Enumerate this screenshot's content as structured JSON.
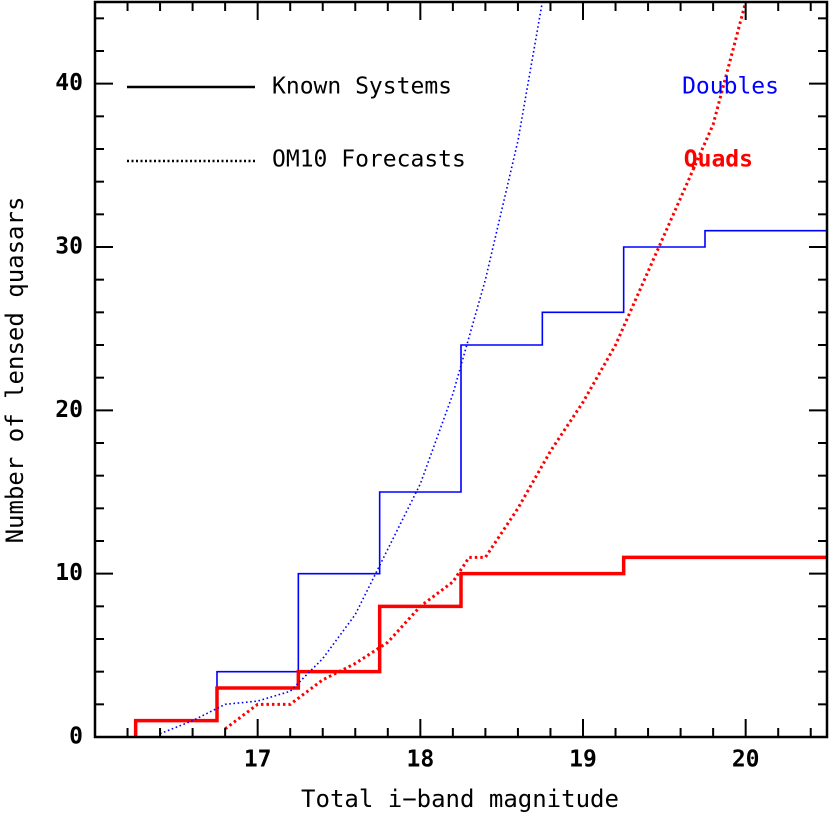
{
  "chart_data": {
    "type": "line",
    "xlabel": "Total i−band magnitude",
    "ylabel": "Number of lensed quasars",
    "xlim": [
      16.0,
      20.5
    ],
    "ylim": [
      0,
      45
    ],
    "x_ticks": [
      17,
      18,
      19,
      20
    ],
    "y_ticks": [
      0,
      10,
      20,
      30,
      40
    ],
    "x_tick_labels": [
      "17",
      "18",
      "19",
      "20"
    ],
    "y_tick_labels": [
      "0",
      "10",
      "20",
      "30",
      "40"
    ],
    "grid": false,
    "legend": {
      "placement": "top",
      "style_entries": [
        {
          "label": "Known Systems",
          "linestyle": "solid"
        },
        {
          "label": "OM10 Forecasts",
          "linestyle": "dotted"
        }
      ],
      "color_entries": [
        {
          "label": "Doubles",
          "color": "#0000ff"
        },
        {
          "label": "Quads",
          "color": "#ff0000"
        }
      ]
    },
    "series": [
      {
        "name": "Doubles",
        "kind": "Known Systems",
        "color": "#0000ff",
        "style": "step",
        "x": [
          16.25,
          16.75,
          17.25,
          17.75,
          18.25,
          18.75,
          19.25,
          19.75,
          20.5
        ],
        "y": [
          1,
          4,
          10,
          15,
          24,
          26,
          30,
          31,
          31
        ]
      },
      {
        "name": "Quads",
        "kind": "Known Systems",
        "color": "#ff0000",
        "style": "step",
        "x": [
          16.25,
          16.75,
          17.25,
          17.75,
          18.25,
          18.75,
          19.25,
          19.75,
          20.5
        ],
        "y": [
          1,
          3,
          4,
          8,
          10,
          10,
          11,
          11,
          11
        ]
      },
      {
        "name": "Doubles",
        "kind": "OM10 Forecasts",
        "color": "#0000ff",
        "style": "dotted",
        "x": [
          16.4,
          16.6,
          16.8,
          17.0,
          17.2,
          17.4,
          17.6,
          17.8,
          18.0,
          18.2,
          18.4,
          18.6,
          18.75
        ],
        "y": [
          0.2,
          1.0,
          2.0,
          2.2,
          2.8,
          4.8,
          7.5,
          11.5,
          15.5,
          21.0,
          28.0,
          36.5,
          45.0
        ]
      },
      {
        "name": "Quads",
        "kind": "OM10 Forecasts",
        "color": "#ff0000",
        "style": "dotted",
        "x": [
          16.8,
          17.0,
          17.2,
          17.4,
          17.6,
          17.8,
          18.0,
          18.2,
          18.3,
          18.4,
          18.6,
          18.8,
          19.0,
          19.2,
          19.4,
          19.6,
          19.8,
          20.0
        ],
        "y": [
          0.5,
          2.0,
          2.0,
          3.5,
          4.5,
          5.8,
          8.0,
          9.5,
          11.0,
          11.0,
          14.0,
          17.5,
          20.5,
          24.0,
          28.5,
          33.0,
          37.5,
          45.0
        ]
      }
    ]
  }
}
